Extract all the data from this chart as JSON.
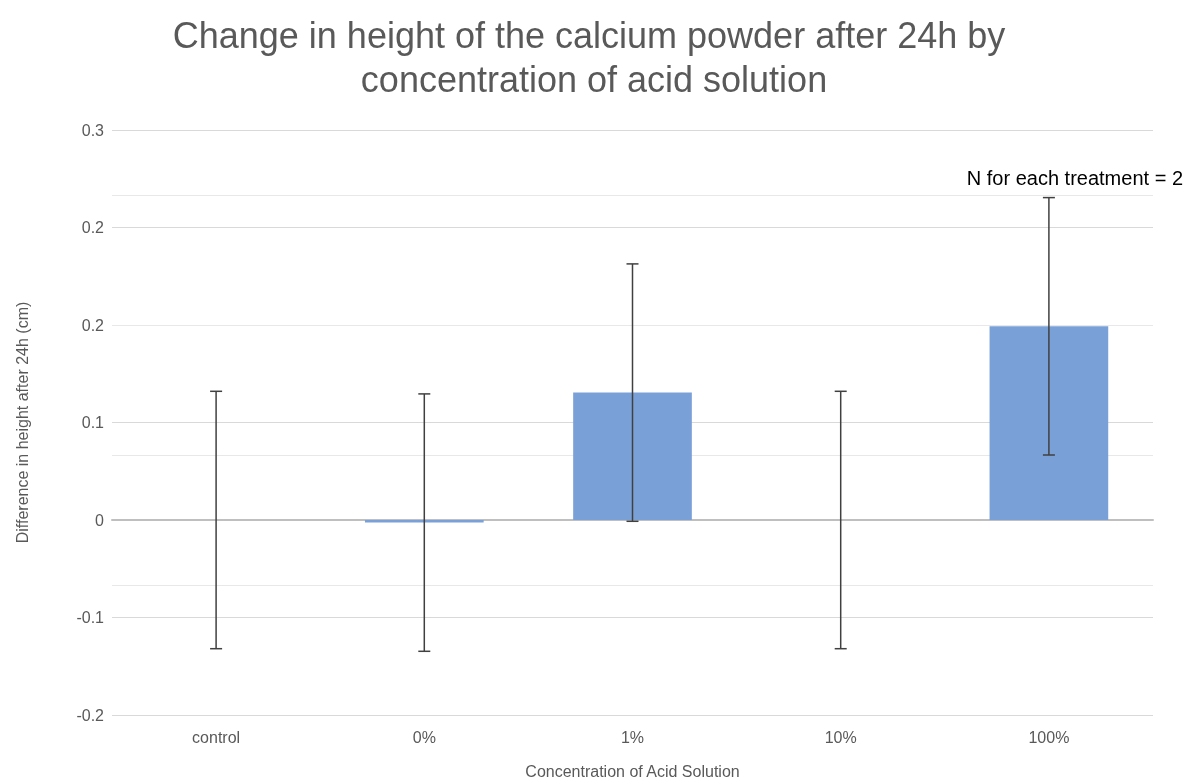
{
  "chart_data": {
    "type": "bar",
    "title": "Change in height of the calcium powder after 24h by concentration of acid solution",
    "xlabel": "Concentration of Acid Solution",
    "ylabel": "Difference in height after 24h (cm)",
    "categories": [
      "control",
      "0%",
      "1%",
      "10%",
      "100%"
    ],
    "values": [
      0,
      -0.002,
      0.098,
      0,
      0.149
    ],
    "errors": [
      0.099,
      0.099,
      0.099,
      0.099,
      0.099
    ],
    "color": "#7aa0d8",
    "ylim": [
      -0.15,
      0.3
    ],
    "yticks": [
      {
        "value": -0.15,
        "label": "-0.2"
      },
      {
        "value": -0.075,
        "label": "-0.1"
      },
      {
        "value": 0,
        "label": "0"
      },
      {
        "value": 0.075,
        "label": "0.1"
      },
      {
        "value": 0.15,
        "label": "0.2"
      },
      {
        "value": 0.225,
        "label": "0.2"
      },
      {
        "value": 0.3,
        "label": "0.3"
      }
    ],
    "grid": "y",
    "annotations": [
      "N for each treatment = 2"
    ]
  }
}
